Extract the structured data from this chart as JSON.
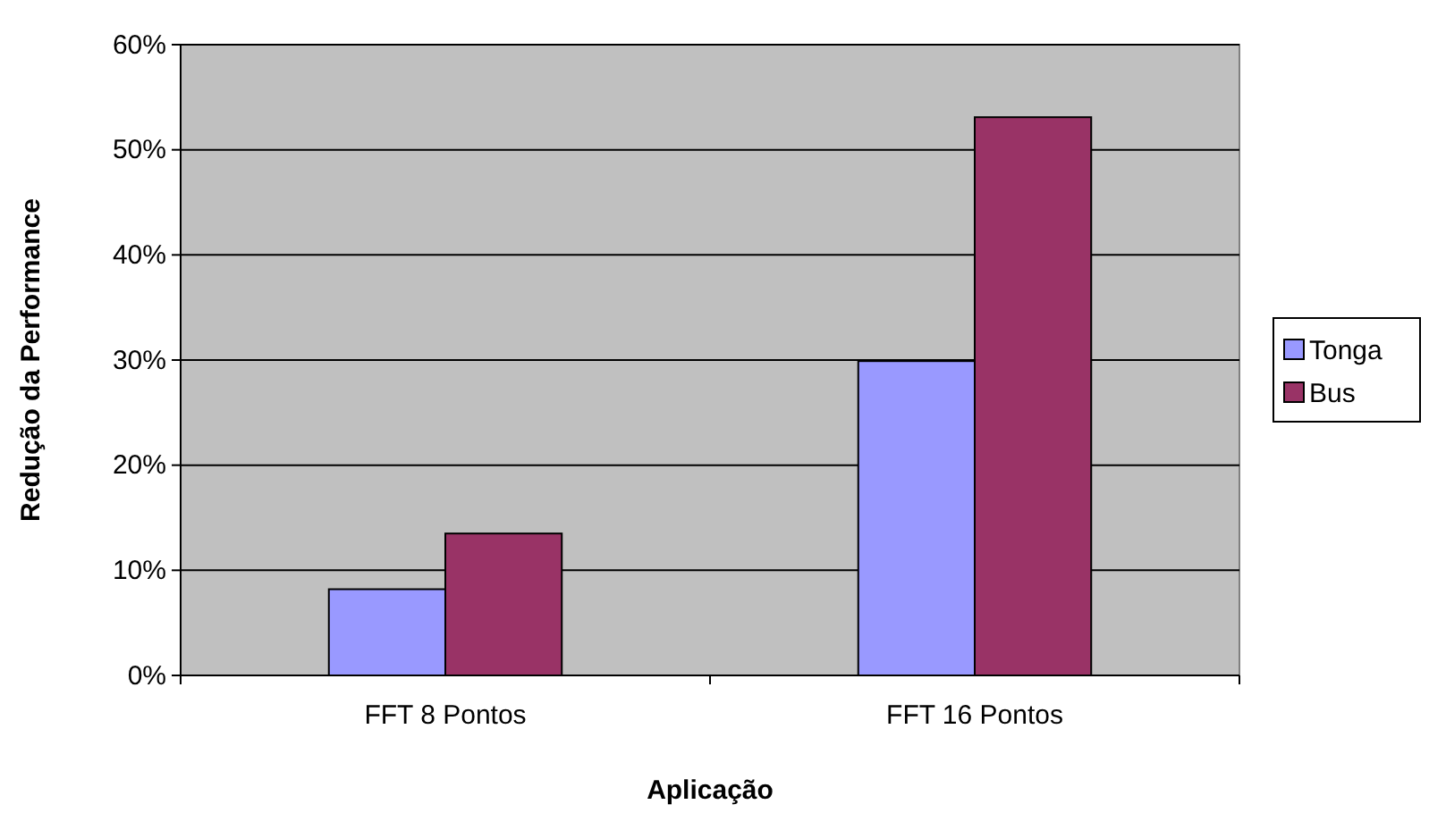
{
  "chart_data": {
    "type": "bar",
    "xlabel": "Aplicação",
    "ylabel": "Redução da Performance",
    "categories": [
      "FFT 8 Pontos",
      "FFT 16 Pontos"
    ],
    "series": [
      {
        "name": "Tonga",
        "color": "#9999ff",
        "values": [
          8.2,
          29.9
        ]
      },
      {
        "name": "Bus",
        "color": "#993366",
        "values": [
          13.5,
          53.1
        ]
      }
    ],
    "ylim": [
      0,
      60
    ],
    "yticks": [
      {
        "value": 0,
        "label": "0%"
      },
      {
        "value": 10,
        "label": "10%"
      },
      {
        "value": 20,
        "label": "20%"
      },
      {
        "value": 30,
        "label": "30%"
      },
      {
        "value": 40,
        "label": "40%"
      },
      {
        "value": 50,
        "label": "50%"
      },
      {
        "value": 60,
        "label": "60%"
      }
    ],
    "grid": "y",
    "legend": "right"
  }
}
